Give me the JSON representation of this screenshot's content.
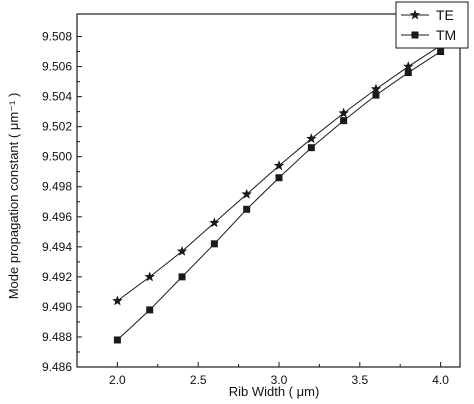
{
  "chart_data": {
    "type": "line",
    "x": [
      2.0,
      2.2,
      2.4,
      2.6,
      2.8,
      3.0,
      3.2,
      3.4,
      3.6,
      3.8,
      4.0
    ],
    "series": [
      {
        "name": "TE",
        "marker": "star",
        "values": [
          9.4904,
          9.492,
          9.4937,
          9.4956,
          9.4975,
          9.4994,
          9.5012,
          9.5029,
          9.5045,
          9.506,
          9.5074
        ]
      },
      {
        "name": "TM",
        "marker": "square",
        "values": [
          9.4878,
          9.4898,
          9.492,
          9.4942,
          9.4965,
          9.4986,
          9.5006,
          9.5024,
          9.5041,
          9.5056,
          9.507
        ]
      }
    ],
    "xlabel": "Rib Width ( μm)",
    "ylabel": "Mode propagation constant ( μm⁻¹ )",
    "xlim": [
      1.75,
      4.12
    ],
    "ylim": [
      9.486,
      9.5095
    ],
    "xticks": [
      "2.0",
      "2.5",
      "3.0",
      "3.5",
      "4.0"
    ],
    "yticks": [
      "9.486",
      "9.488",
      "9.490",
      "9.492",
      "9.494",
      "9.496",
      "9.498",
      "9.500",
      "9.502",
      "9.504",
      "9.506",
      "9.508"
    ],
    "grid": false,
    "legend_position": "top-right",
    "colors": {
      "line": "#1a1a1a",
      "axis": "#1a1a1a",
      "background": "#ffffff"
    }
  }
}
